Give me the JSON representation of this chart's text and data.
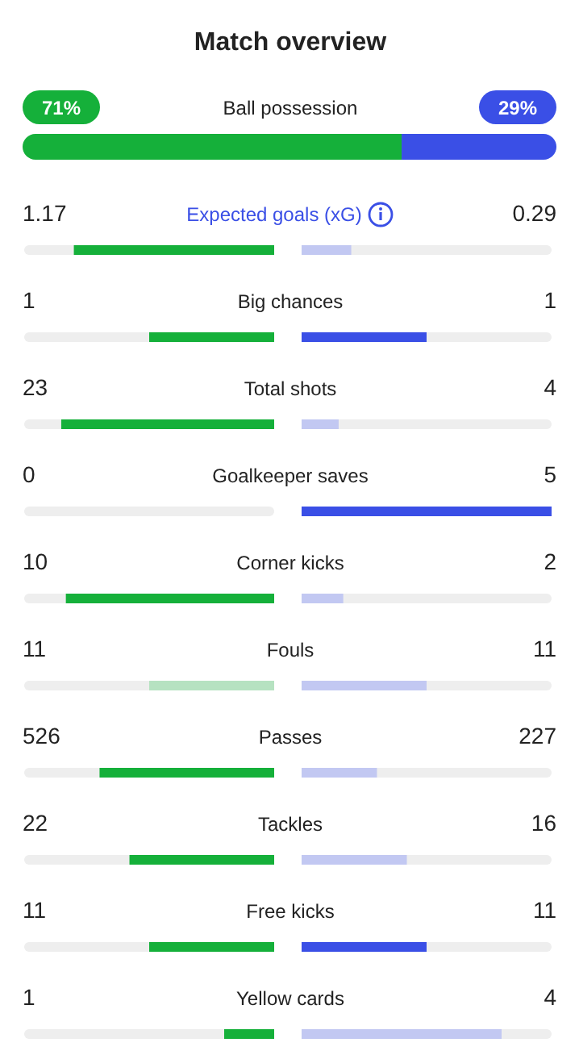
{
  "chart_data": {
    "type": "other",
    "title": "Match overview",
    "categories": [
      "Ball possession",
      "Expected goals (xG)",
      "Big chances",
      "Total shots",
      "Goalkeeper saves",
      "Corner kicks",
      "Fouls",
      "Passes",
      "Tackles",
      "Free kicks",
      "Yellow cards"
    ],
    "series": [
      {
        "color": "#15b03a",
        "values": [
          71,
          1.17,
          1,
          23,
          0,
          10,
          11,
          526,
          22,
          11,
          1
        ],
        "value_labels": [
          "71%",
          "1.17",
          "1",
          "23",
          "0",
          "10",
          "11",
          "526",
          "22",
          "11",
          "1"
        ],
        "colors": [
          "#15b03a",
          "#15b03a",
          "#15b03a",
          "#15b03a",
          "#b6e2c1",
          "#15b03a",
          "#b6e2c1",
          "#15b03a",
          "#15b03a",
          "#15b03a",
          "#15b03a"
        ]
      },
      {
        "color": "#3a4fe6",
        "values": [
          29,
          0.29,
          1,
          4,
          5,
          2,
          11,
          227,
          16,
          11,
          4
        ],
        "value_labels": [
          "29%",
          "0.29",
          "1",
          "4",
          "5",
          "2",
          "11",
          "227",
          "16",
          "11",
          "4"
        ],
        "colors": [
          "#3a4fe6",
          "#c2c8f2",
          "#3a4fe6",
          "#c2c8f2",
          "#3a4fe6",
          "#c2c8f2",
          "#c2c8f2",
          "#c2c8f2",
          "#c2c8f2",
          "#3a4fe6",
          "#c2c8f2"
        ]
      }
    ]
  }
}
